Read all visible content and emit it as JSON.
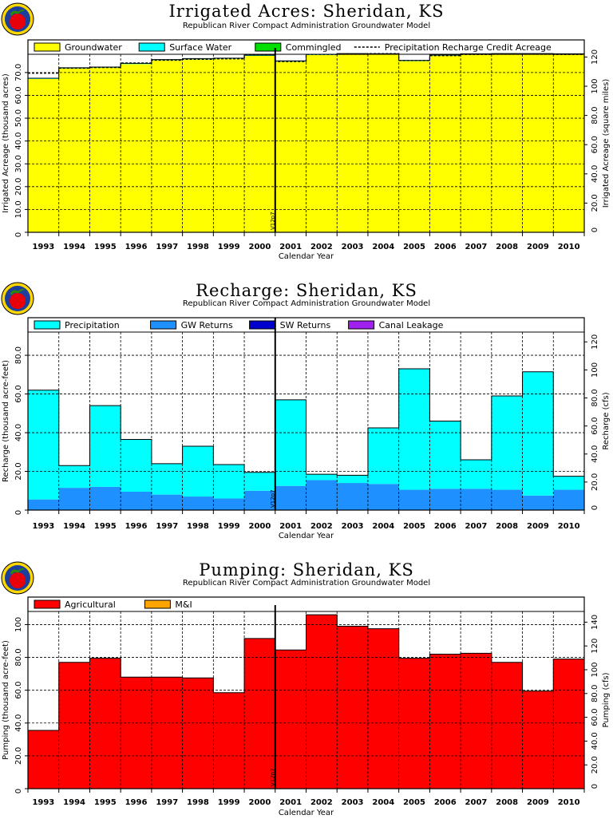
{
  "chart_data": [
    {
      "type": "area",
      "title": "Irrigated Acres: Sheridan, KS",
      "subtitle": "Republican River Compact Administration Groundwater Model",
      "xlabel": "Calendar Year",
      "ylabel": "Irrigated Acreage (thousand acres)",
      "ylabel_right": "Irrigated Acreage (square miles)",
      "categories": [
        "1993",
        "1994",
        "1995",
        "1996",
        "1997",
        "1998",
        "1999",
        "2000",
        "2001",
        "2002",
        "2003",
        "2004",
        "2005",
        "2006",
        "2007",
        "2008",
        "2009",
        "2010"
      ],
      "ylim": [
        0,
        78
      ],
      "yticks": [
        "10.0",
        "20.0",
        "30.0",
        "40.0",
        "50.0",
        "60.0",
        "70.0"
      ],
      "ytick_values": [
        10,
        20,
        30,
        40,
        50,
        60,
        70
      ],
      "right_ylim": [
        0,
        121.875
      ],
      "right_yticks": [
        "20.0",
        "40.0",
        "60.0",
        "80.0",
        "100",
        "120"
      ],
      "right_ytick_values": [
        20,
        40,
        60,
        80,
        100,
        120
      ],
      "marker_label": "V12p7",
      "marker_after_index": 7,
      "legend": [
        {
          "name": "Groundwater",
          "color": "#ffff00",
          "kind": "box"
        },
        {
          "name": "Surface Water",
          "color": "#00ffff",
          "kind": "box"
        },
        {
          "name": "Commingled",
          "color": "#00e000",
          "kind": "box"
        },
        {
          "name": "Precipitation Recharge Credit Acreage",
          "color": "#000000",
          "kind": "dash"
        }
      ],
      "series": [
        {
          "name": "Groundwater",
          "color": "#ffff00",
          "values": [
            67.2,
            71.8,
            72.1,
            73.7,
            75.4,
            75.8,
            76.0,
            77.3,
            74.8,
            77.7,
            78.0,
            77.9,
            75.0,
            77.4,
            77.9,
            78.0,
            78.0,
            77.9
          ]
        },
        {
          "name": "Surface Water",
          "color": "#00ffff",
          "values": [
            0.3,
            0.3,
            0.3,
            0.3,
            0.3,
            0.3,
            0.3,
            0.3,
            0.3,
            0.3,
            0.3,
            0.3,
            0.3,
            0.3,
            0.3,
            0.3,
            0.3,
            0.3
          ]
        },
        {
          "name": "Commingled",
          "color": "#00e000",
          "values": [
            0,
            0,
            0,
            0,
            0,
            0,
            0,
            0,
            0,
            0,
            0,
            0,
            0,
            0,
            0,
            0,
            0,
            0
          ]
        }
      ],
      "dashed_line": {
        "name": "Precipitation Recharge Credit Acreage",
        "values": [
          69.7,
          71.9,
          72.2,
          74.2,
          75.4,
          75.8,
          76.0,
          77.8,
          74.8,
          77.9,
          78.0,
          78.3,
          75.3,
          77.4,
          77.9,
          78.0,
          78.0,
          77.9
        ]
      }
    },
    {
      "type": "area",
      "title": "Recharge: Sheridan, KS",
      "subtitle": "Republican River Compact Administration Groundwater Model",
      "xlabel": "Calendar Year",
      "ylabel": "Recharge (thousand acre-feet)",
      "ylabel_right": "Recharge (cfs)",
      "categories": [
        "1993",
        "1994",
        "1995",
        "1996",
        "1997",
        "1998",
        "1999",
        "2000",
        "2001",
        "2002",
        "2003",
        "2004",
        "2005",
        "2006",
        "2007",
        "2008",
        "2009",
        "2010"
      ],
      "ylim": [
        0,
        92
      ],
      "yticks": [
        "20.0",
        "40.0",
        "60.0",
        "80.0"
      ],
      "ytick_values": [
        20,
        40,
        60,
        80
      ],
      "right_ylim": [
        0,
        127
      ],
      "right_yticks": [
        "20.0",
        "40.0",
        "60.0",
        "80.0",
        "100",
        "120"
      ],
      "right_ytick_values": [
        20,
        40,
        60,
        80,
        100,
        120
      ],
      "marker_label": "V12p7",
      "marker_after_index": 7,
      "legend": [
        {
          "name": "Precipitation",
          "color": "#00ffff",
          "kind": "box"
        },
        {
          "name": "GW Returns",
          "color": "#1e90ff",
          "kind": "box"
        },
        {
          "name": "SW Returns",
          "color": "#0000cd",
          "kind": "box"
        },
        {
          "name": "Canal Leakage",
          "color": "#a020f0",
          "kind": "box"
        }
      ],
      "series": [
        {
          "name": "GW Returns",
          "color": "#1e90ff",
          "values": [
            5.5,
            11.5,
            12.0,
            9.5,
            8.0,
            7.0,
            6.0,
            10.0,
            12.5,
            15.5,
            14.0,
            13.5,
            10.5,
            11.0,
            11.0,
            10.5,
            7.5,
            10.5
          ]
        },
        {
          "name": "Precipitation",
          "color": "#00ffff",
          "values": [
            56.5,
            11.5,
            42.0,
            27.0,
            16.0,
            26.0,
            17.5,
            9.5,
            44.5,
            3.0,
            4.0,
            29.0,
            62.5,
            35.0,
            15.0,
            48.5,
            64.0,
            7.0
          ]
        },
        {
          "name": "SW Returns",
          "color": "#0000cd",
          "values": [
            0,
            0,
            0,
            0,
            0,
            0,
            0,
            0,
            0,
            0,
            0,
            0,
            0,
            0,
            0,
            0,
            0,
            0
          ]
        },
        {
          "name": "Canal Leakage",
          "color": "#a020f0",
          "values": [
            0,
            0,
            0,
            0,
            0,
            0,
            0,
            0,
            0,
            0,
            0,
            0,
            0,
            0,
            0,
            0,
            0,
            0
          ]
        }
      ]
    },
    {
      "type": "area",
      "title": "Pumping: Sheridan, KS",
      "subtitle": "Republican River Compact Administration Groundwater Model",
      "xlabel": "Calendar Year",
      "ylabel": "Pumping (thousand acre-feet)",
      "ylabel_right": "Pumping (cfs)",
      "categories": [
        "1993",
        "1994",
        "1995",
        "1996",
        "1997",
        "1998",
        "1999",
        "2000",
        "2001",
        "2002",
        "2003",
        "2004",
        "2005",
        "2006",
        "2007",
        "2008",
        "2009",
        "2010"
      ],
      "ylim": [
        0,
        108
      ],
      "yticks": [
        "20.0",
        "40.0",
        "60.0",
        "80.0",
        "100"
      ],
      "ytick_values": [
        20,
        40,
        60,
        80,
        100
      ],
      "right_ylim": [
        0,
        149
      ],
      "right_yticks": [
        "20.0",
        "40.0",
        "60.0",
        "80.0",
        "100",
        "120",
        "140"
      ],
      "right_ytick_values": [
        20,
        40,
        60,
        80,
        100,
        120,
        140
      ],
      "marker_label": "V12p7",
      "marker_after_index": 7,
      "legend": [
        {
          "name": "Agricultural",
          "color": "#ff0000",
          "kind": "box"
        },
        {
          "name": "M&I",
          "color": "#ffa500",
          "kind": "box"
        }
      ],
      "series": [
        {
          "name": "Agricultural",
          "color": "#ff0000",
          "values": [
            35.5,
            77.0,
            79.5,
            68.0,
            68.0,
            67.5,
            58.5,
            91.5,
            84.5,
            106.0,
            99.0,
            97.5,
            79.5,
            82.0,
            82.5,
            77.0,
            59.5,
            79.0
          ]
        },
        {
          "name": "M&I",
          "color": "#ffa500",
          "values": [
            0,
            0,
            0,
            0,
            0,
            0,
            0,
            0,
            0,
            0,
            0,
            0,
            0,
            0,
            0,
            0,
            0,
            0
          ]
        }
      ]
    }
  ]
}
